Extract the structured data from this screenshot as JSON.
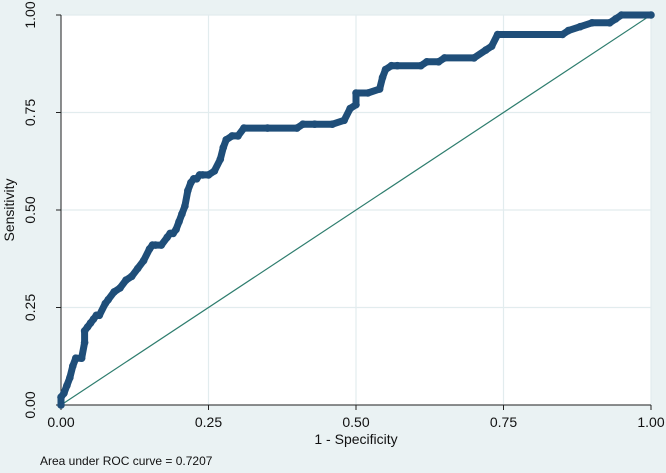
{
  "chart_data": {
    "type": "line",
    "title": "",
    "xlabel": "1 - Specificity",
    "ylabel": "Sensitivity",
    "xlim": [
      0,
      1
    ],
    "ylim": [
      0,
      1
    ],
    "x_ticks": [
      "0.00",
      "0.25",
      "0.50",
      "0.75",
      "1.00"
    ],
    "y_ticks": [
      "0.00",
      "0.25",
      "0.50",
      "0.75",
      "1.00"
    ],
    "grid": true,
    "annotation": "Area under ROC curve = 0.7207",
    "colors": {
      "roc": "#1f4e79",
      "reference": "#2e7d6e",
      "plot_bg": "#ffffff",
      "outer_bg": "#eaf2f3",
      "grid": "#e2ecee"
    },
    "series": [
      {
        "kind": "roc",
        "x": [
          0.0,
          0.0,
          0.005,
          0.01,
          0.015,
          0.02,
          0.025,
          0.035,
          0.04,
          0.04,
          0.045,
          0.05,
          0.055,
          0.06,
          0.065,
          0.075,
          0.08,
          0.09,
          0.1,
          0.11,
          0.12,
          0.13,
          0.14,
          0.15,
          0.155,
          0.16,
          0.17,
          0.18,
          0.185,
          0.19,
          0.195,
          0.2,
          0.205,
          0.21,
          0.215,
          0.22,
          0.225,
          0.23,
          0.235,
          0.24,
          0.25,
          0.26,
          0.27,
          0.275,
          0.28,
          0.29,
          0.3,
          0.31,
          0.35,
          0.4,
          0.41,
          0.43,
          0.46,
          0.48,
          0.49,
          0.5,
          0.5,
          0.52,
          0.54,
          0.545,
          0.55,
          0.56,
          0.57,
          0.61,
          0.62,
          0.64,
          0.65,
          0.7,
          0.72,
          0.73,
          0.74,
          0.85,
          0.86,
          0.88,
          0.9,
          0.93,
          0.94,
          0.95,
          1.0
        ],
        "y": [
          0.0,
          0.02,
          0.03,
          0.05,
          0.07,
          0.1,
          0.12,
          0.12,
          0.16,
          0.19,
          0.2,
          0.21,
          0.22,
          0.23,
          0.23,
          0.26,
          0.27,
          0.29,
          0.3,
          0.32,
          0.33,
          0.35,
          0.37,
          0.4,
          0.41,
          0.41,
          0.41,
          0.43,
          0.44,
          0.44,
          0.45,
          0.47,
          0.49,
          0.51,
          0.55,
          0.57,
          0.58,
          0.58,
          0.59,
          0.59,
          0.59,
          0.6,
          0.63,
          0.66,
          0.68,
          0.69,
          0.69,
          0.71,
          0.71,
          0.71,
          0.72,
          0.72,
          0.72,
          0.73,
          0.76,
          0.77,
          0.8,
          0.8,
          0.81,
          0.84,
          0.86,
          0.87,
          0.87,
          0.87,
          0.88,
          0.88,
          0.89,
          0.89,
          0.91,
          0.92,
          0.95,
          0.95,
          0.96,
          0.97,
          0.98,
          0.98,
          0.99,
          1.0,
          1.0
        ]
      },
      {
        "kind": "reference",
        "x": [
          0,
          1
        ],
        "y": [
          0,
          1
        ]
      }
    ]
  }
}
